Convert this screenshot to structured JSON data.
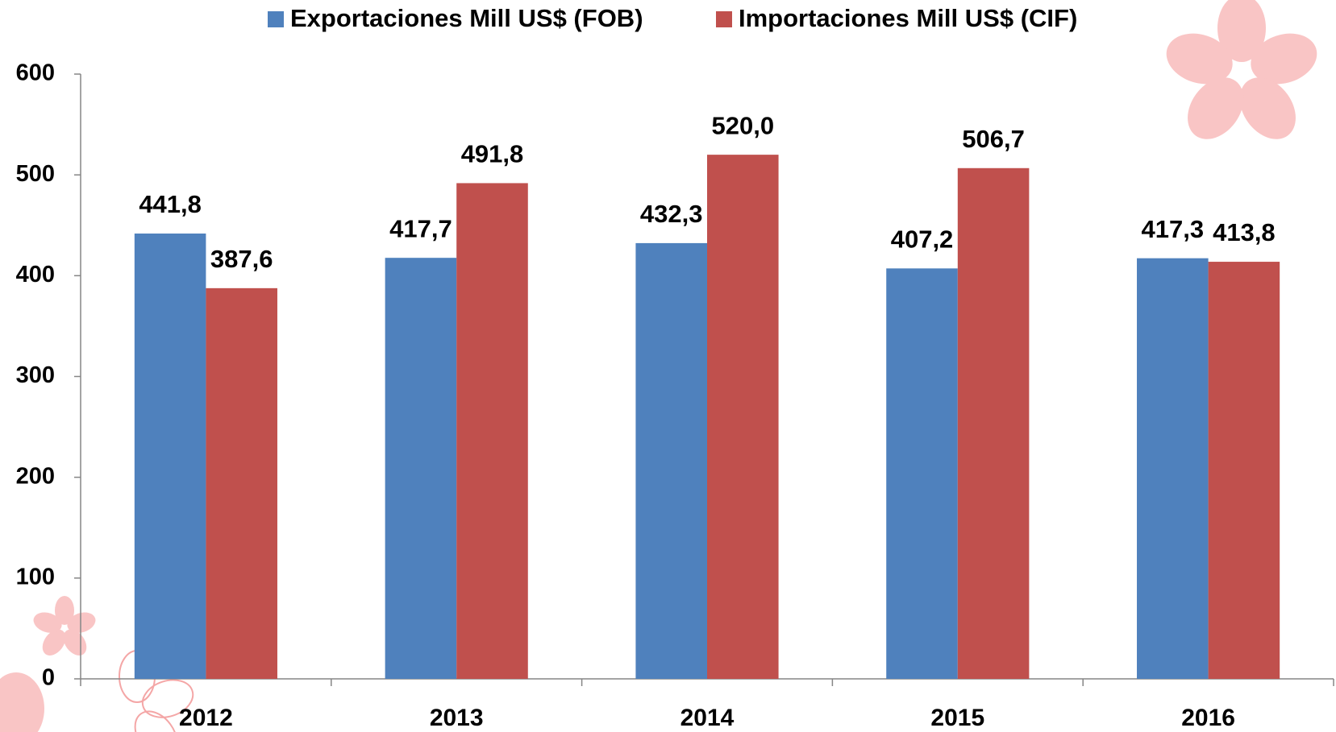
{
  "chart_data": {
    "type": "bar",
    "categories": [
      "2012",
      "2013",
      "2014",
      "2015",
      "2016"
    ],
    "series": [
      {
        "name": "Exportaciones Mill US$ (FOB)",
        "color": "#4f81bd",
        "values": [
          441.8,
          417.7,
          432.3,
          407.2,
          417.3
        ],
        "value_labels": [
          "441,8",
          "417,7",
          "432,3",
          "407,2",
          "417,3"
        ]
      },
      {
        "name": "Importaciones Mill US$ (CIF)",
        "color": "#c0504d",
        "values": [
          387.6,
          491.8,
          520.0,
          506.7,
          413.8
        ],
        "value_labels": [
          "387,6",
          "491,8",
          "520,0",
          "506,7",
          "413,8"
        ]
      }
    ],
    "ylim": [
      0,
      600
    ],
    "yticks": [
      0,
      100,
      200,
      300,
      400,
      500,
      600
    ],
    "grid": false,
    "legend": "top"
  }
}
